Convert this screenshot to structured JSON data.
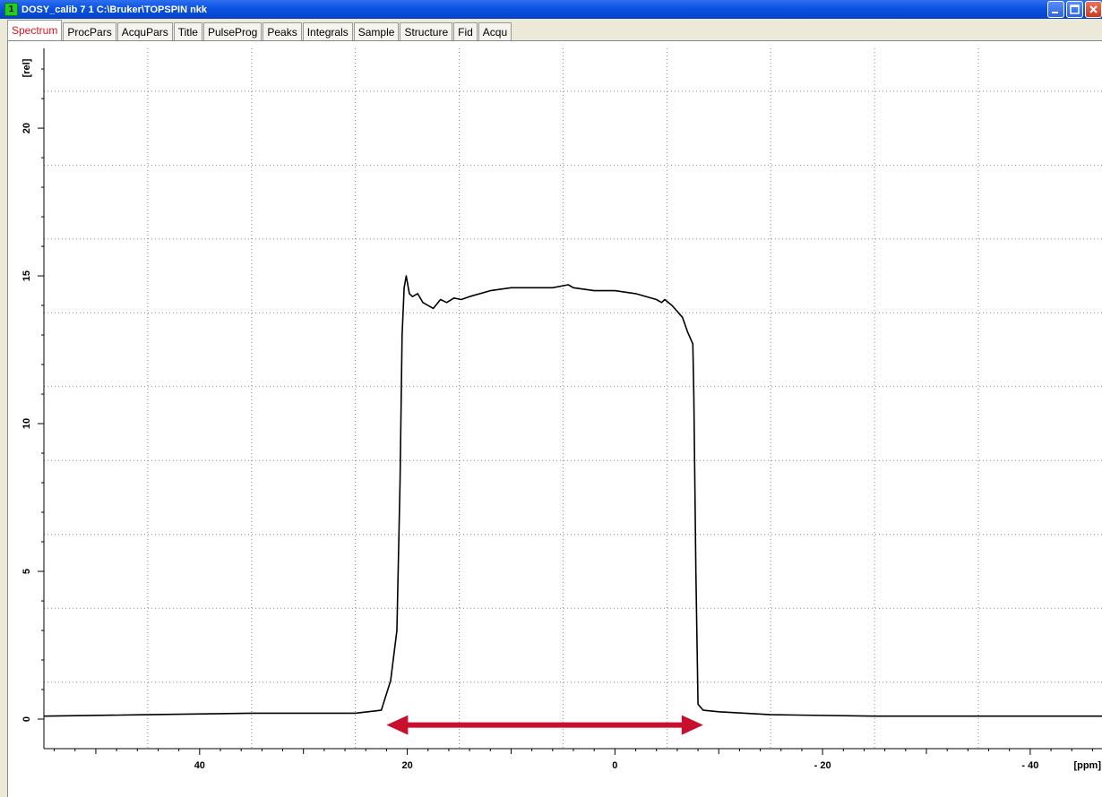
{
  "window": {
    "number": "1",
    "title": "DOSY_calib  7  1  C:\\Bruker\\TOPSPIN  nkk",
    "minimize_icon": "minimize-icon",
    "maximize_icon": "maximize-icon",
    "close_icon": "close-icon"
  },
  "tabs": [
    {
      "label": "Spectrum",
      "active": true
    },
    {
      "label": "ProcPars"
    },
    {
      "label": "AcquPars"
    },
    {
      "label": "Title"
    },
    {
      "label": "PulseProg"
    },
    {
      "label": "Peaks"
    },
    {
      "label": "Integrals"
    },
    {
      "label": "Sample"
    },
    {
      "label": "Structure"
    },
    {
      "label": "Fid"
    },
    {
      "label": "Acqu"
    }
  ],
  "colors": {
    "active_tab_text": "#e0141b",
    "arrow": "#c8102e",
    "trace": "#000000",
    "title_bar": "#0a52e0"
  },
  "chart_data": {
    "type": "line",
    "xlabel": "[ppm]",
    "ylabel": "[rel]",
    "x_reversed": true,
    "xlim": [
      55,
      -47
    ],
    "ylim": [
      -1.0,
      22.7
    ],
    "x_ticks": [
      40,
      20,
      0,
      -20,
      -40
    ],
    "x_tick_labels": [
      "40",
      "20",
      "0",
      "- 20",
      "- 40"
    ],
    "y_ticks": [
      0,
      5,
      10,
      15,
      20
    ],
    "y_tick_labels": [
      "0",
      "5",
      "10",
      "15",
      "20"
    ],
    "grid": true,
    "series": [
      {
        "x": [
          55,
          45,
          35,
          25,
          22.5,
          21.6,
          21.0,
          20.7,
          20.5,
          20.3,
          20.1,
          19.8,
          19.5,
          19.0,
          18.5,
          17.5,
          16.8,
          16.2,
          15.5,
          14.8,
          14.0,
          12,
          10,
          8,
          6,
          4.5,
          4.0,
          2,
          0,
          -2,
          -4,
          -4.5,
          -4.8,
          -5.5,
          -6.5,
          -7.0,
          -7.5,
          -7.6,
          -7.8,
          -8.0,
          -8.5,
          -10,
          -15,
          -25,
          -35,
          -47
        ],
        "y": [
          0.1,
          0.15,
          0.2,
          0.2,
          0.3,
          1.3,
          3.0,
          8.0,
          13.0,
          14.6,
          15.0,
          14.4,
          14.3,
          14.4,
          14.1,
          13.9,
          14.2,
          14.1,
          14.25,
          14.2,
          14.3,
          14.5,
          14.6,
          14.6,
          14.6,
          14.7,
          14.6,
          14.5,
          14.5,
          14.4,
          14.2,
          14.1,
          14.2,
          14.0,
          13.6,
          13.1,
          12.7,
          11.0,
          5.0,
          0.5,
          0.3,
          0.25,
          0.15,
          0.1,
          0.1,
          0.1
        ]
      }
    ],
    "annotation": {
      "type": "double-arrow",
      "x_start": 22.0,
      "x_end": -8.5,
      "y": -0.2
    }
  }
}
